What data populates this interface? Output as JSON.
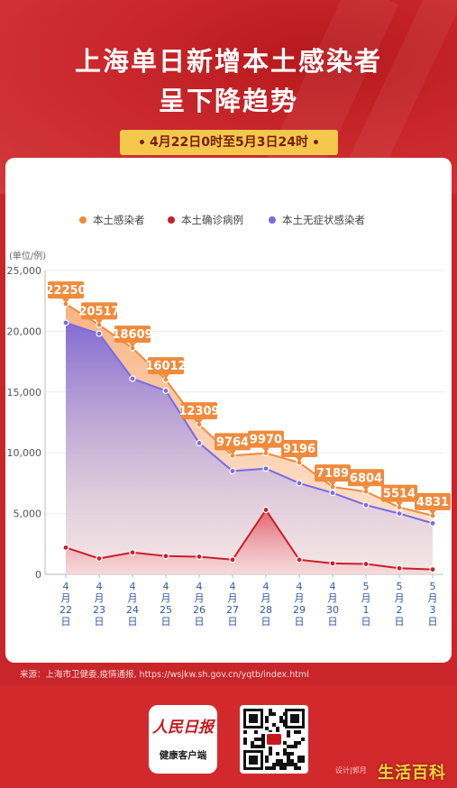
{
  "title_line1": "上海单日新增本土感染者",
  "title_line2": "呈下降趋势",
  "date_range": "4月22日0时至5月3日24时",
  "source": "来源：上海市卫健委,疫情通报, https://wsjkw.sh.gov.cn/yqtb/index.html",
  "brand_name": "人民日报",
  "brand_sub": "健康客户端",
  "designer": "设计|郭月",
  "watermark": "生活百科",
  "chart_data": {
    "type": "area",
    "title": "",
    "unit_label": "(单位/例)",
    "ylim": [
      0,
      25000
    ],
    "yticks": [
      0,
      5000,
      10000,
      15000,
      20000,
      25000
    ],
    "ytick_labels": [
      "0",
      "5,000",
      "10,000",
      "15,000",
      "20,000",
      "25,000"
    ],
    "legend_position": "top-center",
    "categories": [
      [
        "4",
        "月",
        "22",
        "日"
      ],
      [
        "4",
        "月",
        "23",
        "日"
      ],
      [
        "4",
        "月",
        "24",
        "日"
      ],
      [
        "4",
        "月",
        "25",
        "日"
      ],
      [
        "4",
        "月",
        "26",
        "日"
      ],
      [
        "4",
        "月",
        "27",
        "日"
      ],
      [
        "4",
        "月",
        "28",
        "日"
      ],
      [
        "4",
        "月",
        "29",
        "日"
      ],
      [
        "4",
        "月",
        "30",
        "日"
      ],
      [
        "5",
        "月",
        "1",
        "日"
      ],
      [
        "5",
        "月",
        "2",
        "日"
      ],
      [
        "5",
        "月",
        "3",
        "日"
      ]
    ],
    "series": [
      {
        "name": "本土感染者",
        "color": "#f08a3c",
        "labeled": true,
        "values": [
          22250,
          20517,
          18609,
          16012,
          12309,
          9764,
          9970,
          9196,
          7189,
          6804,
          5514,
          4831
        ]
      },
      {
        "name": "本土确诊病例",
        "color": "#c9202c",
        "labeled": false,
        "values": [
          2200,
          1300,
          1800,
          1500,
          1450,
          1200,
          5300,
          1200,
          900,
          850,
          500,
          400
        ]
      },
      {
        "name": "本土无症状感染者",
        "color": "#7a6ae6",
        "labeled": false,
        "values": [
          20700,
          19800,
          16100,
          15100,
          10800,
          8500,
          8700,
          7500,
          6700,
          5700,
          5000,
          4200
        ]
      }
    ]
  }
}
